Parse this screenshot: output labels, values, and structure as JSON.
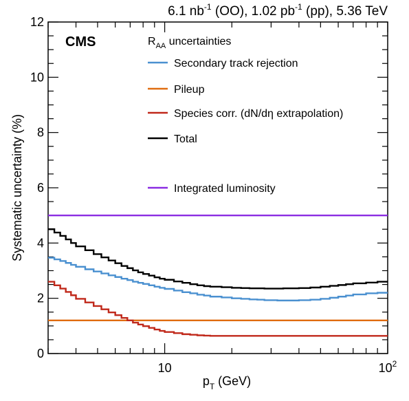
{
  "header": {
    "lumi_oo": "6.1 nb",
    "lumi_oo_exp": "-1",
    "lumi_oo_label": " (OO), 1.02 pb",
    "lumi_pp_exp": "-1",
    "lumi_pp_label": " (pp), 5.36 TeV"
  },
  "chart_data": {
    "type": "line",
    "experiment_label": "CMS",
    "legend_title_main": "R",
    "legend_title_sub": "AA",
    "legend_title_rest": " uncertainties",
    "xlabel_main": "p",
    "xlabel_sub": "T",
    "xlabel_rest": " (GeV)",
    "ylabel": "Systematic uncertainty (%)",
    "xscale": "log",
    "xlim": [
      3,
      100
    ],
    "ylim": [
      0,
      12
    ],
    "y_ticks": [
      0,
      2,
      4,
      6,
      8,
      10,
      12
    ],
    "y_tick_labels": [
      "0",
      "2",
      "4",
      "6",
      "8",
      "10",
      "12"
    ],
    "x_tick_labels": [
      {
        "value": 10,
        "label": "10",
        "exp": ""
      },
      {
        "value": 100,
        "label": "10",
        "exp": "2"
      }
    ],
    "grid": false,
    "legend_position": "top-right",
    "series": [
      {
        "name": "Secondary track rejection",
        "color": "#4a90d0",
        "x": [
          3.0,
          3.2,
          3.4,
          3.6,
          3.8,
          4.0,
          4.4,
          4.8,
          5.2,
          5.6,
          6.0,
          6.4,
          6.8,
          7.2,
          7.6,
          8.0,
          8.5,
          9.0,
          9.5,
          10.0,
          11.0,
          12.0,
          13.0,
          14.0,
          15.0,
          16.0,
          18.0,
          20.0,
          22.0,
          24.0,
          26.0,
          28.0,
          30.0,
          32.0,
          34.0,
          36.0,
          38.0,
          40.0,
          45.0,
          50.0,
          55.0,
          60.0,
          65.0,
          70.0,
          80.0,
          90.0,
          100.0
        ],
        "y": [
          3.47,
          3.41,
          3.35,
          3.28,
          3.21,
          3.14,
          3.05,
          2.97,
          2.9,
          2.83,
          2.77,
          2.71,
          2.66,
          2.6,
          2.56,
          2.52,
          2.47,
          2.42,
          2.38,
          2.34,
          2.28,
          2.22,
          2.18,
          2.13,
          2.1,
          2.06,
          2.03,
          2.0,
          1.98,
          1.96,
          1.95,
          1.93,
          1.93,
          1.92,
          1.92,
          1.92,
          1.92,
          1.93,
          1.95,
          1.98,
          2.02,
          2.06,
          2.1,
          2.14,
          2.18,
          2.2,
          2.2
        ]
      },
      {
        "name": "Pileup",
        "color": "#e06c10",
        "x": [
          3.0,
          100.0
        ],
        "y": [
          1.2,
          1.2
        ]
      },
      {
        "name": "Species corr. (dN/dη extrapolation)",
        "color": "#c0281a",
        "x": [
          3.0,
          3.2,
          3.4,
          3.6,
          3.8,
          4.0,
          4.4,
          4.8,
          5.2,
          5.6,
          6.0,
          6.4,
          6.8,
          7.2,
          7.6,
          8.0,
          8.5,
          9.0,
          9.5,
          10.0,
          11.0,
          12.0,
          13.0,
          14.0,
          15.0,
          16.0,
          18.0,
          20.0,
          25.0,
          30.0,
          40.0,
          50.0,
          70.0,
          100.0
        ],
        "y": [
          2.6,
          2.47,
          2.35,
          2.23,
          2.11,
          1.98,
          1.85,
          1.72,
          1.6,
          1.49,
          1.39,
          1.29,
          1.2,
          1.12,
          1.05,
          0.99,
          0.93,
          0.87,
          0.82,
          0.78,
          0.74,
          0.7,
          0.68,
          0.66,
          0.65,
          0.64,
          0.64,
          0.64,
          0.64,
          0.64,
          0.64,
          0.64,
          0.64,
          0.64
        ]
      },
      {
        "name": "Total",
        "color": "#000000",
        "x": [
          3.0,
          3.2,
          3.4,
          3.6,
          3.8,
          4.0,
          4.4,
          4.8,
          5.2,
          5.6,
          6.0,
          6.4,
          6.8,
          7.2,
          7.6,
          8.0,
          8.5,
          9.0,
          9.5,
          10.0,
          11.0,
          12.0,
          13.0,
          14.0,
          15.0,
          16.0,
          18.0,
          20.0,
          22.0,
          24.0,
          26.0,
          28.0,
          30.0,
          32.0,
          34.0,
          36.0,
          38.0,
          40.0,
          45.0,
          50.0,
          55.0,
          60.0,
          65.0,
          70.0,
          80.0,
          90.0,
          100.0
        ],
        "y": [
          4.5,
          4.38,
          4.26,
          4.13,
          4.0,
          3.88,
          3.74,
          3.6,
          3.48,
          3.37,
          3.27,
          3.17,
          3.09,
          3.01,
          2.94,
          2.88,
          2.82,
          2.76,
          2.71,
          2.67,
          2.61,
          2.56,
          2.51,
          2.47,
          2.44,
          2.42,
          2.4,
          2.38,
          2.37,
          2.36,
          2.36,
          2.35,
          2.35,
          2.35,
          2.36,
          2.36,
          2.36,
          2.37,
          2.39,
          2.42,
          2.45,
          2.48,
          2.51,
          2.54,
          2.57,
          2.6,
          2.6
        ]
      },
      {
        "name": "Integrated luminosity",
        "color": "#8a2be2",
        "x": [
          3.0,
          100.0
        ],
        "y": [
          5.0,
          5.0
        ]
      }
    ]
  }
}
